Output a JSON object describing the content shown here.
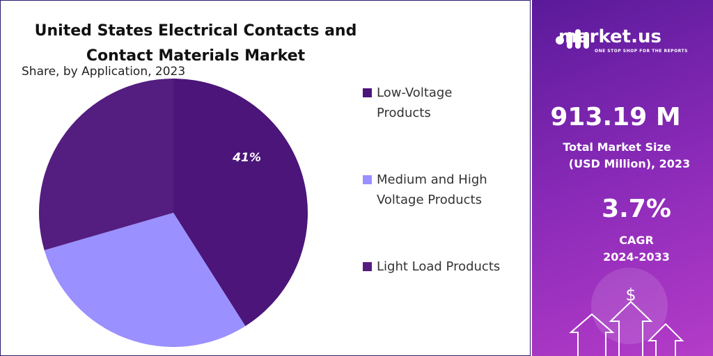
{
  "chart_data": {
    "type": "pie",
    "title": "United States Electrical Contacts and Contact Materials Market",
    "subtitle": "Share, by Application, 2023",
    "categories": [
      " Low-Voltage Products",
      "Medium and High Voltage Products",
      "Light Load Products"
    ],
    "values": [
      41,
      29.5,
      29.5
    ],
    "value_labels": [
      "41%",
      null,
      null
    ],
    "colors": [
      "#4b1579",
      "#9a90ff",
      "#541d80"
    ]
  },
  "side_panel": {
    "brand": "market.us",
    "tagline": "ONE STOP SHOP FOR THE REPORTS",
    "market_size": "913.19 M",
    "market_size_label": "Total Market Size",
    "market_size_unit": "(USD Million), 2023",
    "cagr": "3.7%",
    "cagr_label": "CAGR",
    "cagr_period": "2024-2033"
  }
}
